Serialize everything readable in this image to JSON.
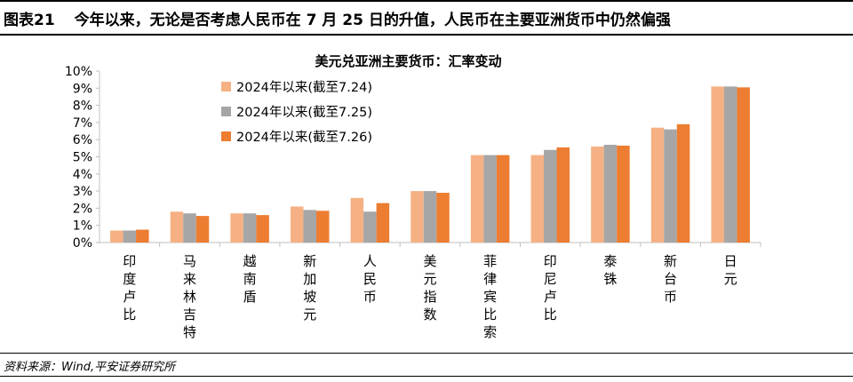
{
  "header": {
    "number": "图表21",
    "title": "今年以来，无论是否考虑人民币在 7 月 25 日的升值，人民币在主要亚洲货币中仍然偏强"
  },
  "source": "资料来源：Wind,平安证券研究所",
  "colors": {
    "series": [
      "#f5b183",
      "#a6a6a6",
      "#ed7d31"
    ],
    "axis": "#bfbfbf"
  },
  "chart_data": {
    "type": "bar",
    "title": "美元兑亚洲主要货币：汇率变动",
    "xlabel": "",
    "ylabel": "",
    "ylim": [
      0,
      10
    ],
    "y_ticks": [
      "0%",
      "1%",
      "2%",
      "3%",
      "4%",
      "5%",
      "6%",
      "7%",
      "8%",
      "9%",
      "10%"
    ],
    "grid": false,
    "legend_position": "top-left",
    "categories": [
      "印度卢比",
      "马来林吉特",
      "越南盾",
      "新加坡元",
      "人民币",
      "美元指数",
      "菲律宾比索",
      "印尼卢比",
      "泰铢",
      "新台币",
      "日元"
    ],
    "series": [
      {
        "name": "2024年以来(截至7.24)",
        "values": [
          0.7,
          1.8,
          1.7,
          2.1,
          2.6,
          3.0,
          5.1,
          5.1,
          5.6,
          6.7,
          9.1
        ]
      },
      {
        "name": "2024年以来(截至7.25)",
        "values": [
          0.7,
          1.7,
          1.7,
          1.9,
          1.8,
          3.0,
          5.1,
          5.4,
          5.7,
          6.6,
          9.1
        ]
      },
      {
        "name": "2024年以来(截至7.26)",
        "values": [
          0.75,
          1.55,
          1.6,
          1.85,
          2.3,
          2.9,
          5.1,
          5.55,
          5.65,
          6.9,
          9.05
        ]
      }
    ]
  }
}
